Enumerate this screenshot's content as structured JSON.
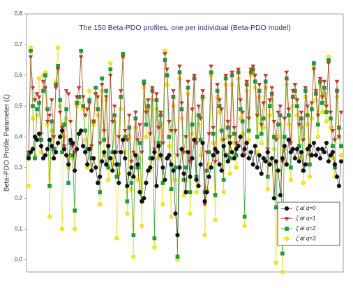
{
  "chart_data": {
    "type": "line",
    "title": "The 150 Beta-PDO profiles, one per individual (Beta-PDO model)",
    "ylabel": "Beta-PDO Profile Parameter (ζ)",
    "x": [
      1,
      2,
      3,
      4,
      5,
      6,
      7,
      8,
      9,
      10,
      11,
      12,
      13,
      14,
      15,
      16,
      17,
      18,
      19,
      20,
      21,
      22,
      23,
      24,
      25,
      26,
      27,
      28,
      29,
      30,
      31,
      32,
      33,
      34,
      35,
      36,
      37,
      38,
      39,
      40,
      41,
      42,
      43,
      44,
      45,
      46,
      47,
      48,
      49,
      50,
      51,
      52,
      53,
      54,
      55,
      56,
      57,
      58,
      59,
      60,
      61,
      62,
      63,
      64,
      65,
      66,
      67,
      68,
      69,
      70,
      71,
      72,
      73,
      74,
      75,
      76,
      77,
      78,
      79,
      80,
      81,
      82,
      83,
      84,
      85,
      86,
      87,
      88,
      89,
      90,
      91,
      92,
      93,
      94,
      95,
      96,
      97,
      98,
      99,
      100,
      101,
      102,
      103,
      104,
      105,
      106,
      107,
      108,
      109,
      110,
      111,
      112,
      113,
      114,
      115,
      116,
      117,
      118,
      119,
      120,
      121,
      122,
      123,
      124,
      125,
      126,
      127,
      128,
      129,
      130,
      131,
      132,
      133,
      134,
      135,
      136,
      137,
      138,
      139,
      140,
      141,
      142,
      143,
      144,
      145,
      146,
      147,
      148,
      149,
      150
    ],
    "xlim": [
      0,
      151
    ],
    "ylim": [
      -0.04,
      0.8
    ],
    "yticks": [
      {
        "value": 0,
        "label": "0.0"
      },
      0.1,
      0.2,
      0.3,
      0.4,
      0.5,
      0.6,
      0.7,
      0.8
    ],
    "legend": "lower right",
    "series": [
      {
        "name": "ζ at q=0",
        "color": "#111111",
        "marker": "circle",
        "values": [
          0.33,
          0.35,
          0.36,
          0.4,
          0.39,
          0.41,
          0.37,
          0.33,
          0.34,
          0.36,
          0.39,
          0.37,
          0.33,
          0.35,
          0.38,
          0.4,
          0.42,
          0.36,
          0.34,
          0.31,
          0.39,
          0.38,
          0.29,
          0.36,
          0.41,
          0.42,
          0.37,
          0.35,
          0.31,
          0.36,
          0.29,
          0.33,
          0.3,
          0.25,
          0.27,
          0.32,
          0.35,
          0.31,
          0.37,
          0.33,
          0.29,
          0.35,
          0.31,
          0.25,
          0.35,
          0.39,
          0.33,
          0.24,
          0.28,
          0.3,
          0.27,
          0.34,
          0.31,
          0.22,
          0.19,
          0.2,
          0.25,
          0.29,
          0.3,
          0.33,
          0.35,
          0.24,
          0.37,
          0.34,
          0.3,
          0.26,
          0.33,
          0.34,
          0.31,
          0.29,
          0.15,
          0.08,
          0.3,
          0.36,
          0.28,
          0.22,
          0.35,
          0.27,
          0.33,
          0.39,
          0.26,
          0.24,
          0.31,
          0.38,
          0.19,
          0.22,
          0.27,
          0.3,
          0.34,
          0.36,
          0.35,
          0.31,
          0.29,
          0.37,
          0.34,
          0.32,
          0.38,
          0.35,
          0.33,
          0.36,
          0.37,
          0.4,
          0.34,
          0.36,
          0.38,
          0.33,
          0.35,
          0.31,
          0.37,
          0.3,
          0.34,
          0.28,
          0.33,
          0.32,
          0.35,
          0.31,
          0.33,
          0.2,
          0.32,
          0.29,
          0.21,
          0.33,
          0.37,
          0.31,
          0.39,
          0.35,
          0.36,
          0.33,
          0.36,
          0.32,
          0.35,
          0.29,
          0.31,
          0.36,
          0.37,
          0.34,
          0.38,
          0.34,
          0.36,
          0.33,
          0.36,
          0.35,
          0.38,
          0.32,
          0.34,
          0.35,
          0.31,
          0.27,
          0.24,
          0.32
        ]
      },
      {
        "name": "ζ at q=1",
        "color": "#c0392b",
        "marker": "triangle-down",
        "values": [
          0.35,
          0.66,
          0.56,
          0.52,
          0.54,
          0.53,
          0.41,
          0.58,
          0.56,
          0.45,
          0.47,
          0.52,
          0.4,
          0.56,
          0.62,
          0.48,
          0.43,
          0.37,
          0.55,
          0.54,
          0.45,
          0.37,
          0.35,
          0.53,
          0.56,
          0.66,
          0.53,
          0.47,
          0.49,
          0.51,
          0.37,
          0.45,
          0.54,
          0.53,
          0.38,
          0.57,
          0.42,
          0.53,
          0.37,
          0.6,
          0.45,
          0.5,
          0.35,
          0.4,
          0.55,
          0.66,
          0.42,
          0.39,
          0.47,
          0.32,
          0.35,
          0.48,
          0.39,
          0.44,
          0.35,
          0.57,
          0.48,
          0.52,
          0.41,
          0.56,
          0.36,
          0.54,
          0.43,
          0.48,
          0.38,
          0.67,
          0.62,
          0.45,
          0.42,
          0.55,
          0.42,
          0.34,
          0.63,
          0.51,
          0.35,
          0.4,
          0.58,
          0.32,
          0.49,
          0.6,
          0.38,
          0.5,
          0.46,
          0.55,
          0.18,
          0.35,
          0.41,
          0.63,
          0.43,
          0.32,
          0.57,
          0.52,
          0.49,
          0.39,
          0.6,
          0.45,
          0.4,
          0.61,
          0.43,
          0.38,
          0.62,
          0.52,
          0.48,
          0.34,
          0.58,
          0.46,
          0.62,
          0.63,
          0.6,
          0.47,
          0.57,
          0.44,
          0.51,
          0.6,
          0.36,
          0.52,
          0.56,
          0.45,
          0.39,
          0.48,
          0.5,
          0.32,
          0.46,
          0.61,
          0.49,
          0.38,
          0.55,
          0.57,
          0.52,
          0.44,
          0.48,
          0.39,
          0.56,
          0.5,
          0.34,
          0.51,
          0.62,
          0.55,
          0.47,
          0.59,
          0.53,
          0.58,
          0.5,
          0.64,
          0.48,
          0.42,
          0.39,
          0.58,
          0.4,
          0.48
        ]
      },
      {
        "name": "ζ at q=2",
        "color": "#1f9a45",
        "marker": "square",
        "values": [
          0.34,
          0.68,
          0.5,
          0.33,
          0.49,
          0.51,
          0.39,
          0.55,
          0.6,
          0.49,
          0.24,
          0.45,
          0.36,
          0.57,
          0.63,
          0.52,
          0.35,
          0.44,
          0.49,
          0.25,
          0.38,
          0.34,
          0.16,
          0.51,
          0.53,
          0.68,
          0.5,
          0.42,
          0.36,
          0.52,
          0.33,
          0.45,
          0.56,
          0.49,
          0.22,
          0.59,
          0.39,
          0.55,
          0.3,
          0.62,
          0.35,
          0.47,
          0.27,
          0.31,
          0.53,
          0.67,
          0.4,
          0.19,
          0.43,
          0.25,
          0.08,
          0.46,
          0.3,
          0.38,
          0.19,
          0.58,
          0.44,
          0.5,
          0.33,
          0.55,
          0.07,
          0.52,
          0.38,
          0.47,
          0.25,
          0.65,
          0.6,
          0.4,
          0.23,
          0.53,
          0.3,
          0.01,
          0.61,
          0.49,
          0.26,
          0.3,
          0.56,
          0.22,
          0.44,
          0.59,
          0.27,
          0.47,
          0.39,
          0.53,
          0.22,
          0.29,
          0.35,
          0.61,
          0.41,
          0.21,
          0.55,
          0.5,
          0.42,
          0.26,
          0.59,
          0.43,
          0.33,
          0.6,
          0.41,
          0.34,
          0.61,
          0.49,
          0.45,
          0.14,
          0.57,
          0.42,
          0.61,
          0.62,
          0.58,
          0.4,
          0.55,
          0.41,
          0.46,
          0.58,
          0.27,
          0.5,
          0.54,
          0.4,
          0.17,
          0.44,
          0.47,
          0.02,
          0.4,
          0.59,
          0.47,
          0.3,
          0.53,
          0.55,
          0.5,
          0.37,
          0.46,
          0.29,
          0.55,
          0.47,
          0.31,
          0.49,
          0.64,
          0.54,
          0.44,
          0.58,
          0.51,
          0.56,
          0.48,
          0.65,
          0.46,
          0.37,
          0.3,
          0.55,
          0.43,
          0.37
        ]
      },
      {
        "name": "ζ at q=3",
        "color": "#f5e61e",
        "marker": "circle",
        "values": [
          0.24,
          0.69,
          0.46,
          0.34,
          0.47,
          0.59,
          0.35,
          0.6,
          0.61,
          0.44,
          0.14,
          0.42,
          0.33,
          0.58,
          0.69,
          0.5,
          0.1,
          0.4,
          0.46,
          0.3,
          0.34,
          0.33,
          0.1,
          0.5,
          0.51,
          0.68,
          0.49,
          0.39,
          0.3,
          0.55,
          0.31,
          0.44,
          0.54,
          0.47,
          0.18,
          0.55,
          0.34,
          0.52,
          0.26,
          0.64,
          0.31,
          0.45,
          0.07,
          0.28,
          0.49,
          0.66,
          0.35,
          0.15,
          0.4,
          0.23,
          0.01,
          0.43,
          0.26,
          0.33,
          0.11,
          0.56,
          0.4,
          0.49,
          0.29,
          0.52,
          0.04,
          0.49,
          0.33,
          0.44,
          0.18,
          0.68,
          0.57,
          0.37,
          0.14,
          0.5,
          0.26,
          0.0,
          0.59,
          0.46,
          0.21,
          0.26,
          0.54,
          0.15,
          0.41,
          0.59,
          0.22,
          0.44,
          0.34,
          0.52,
          0.08,
          0.23,
          0.31,
          0.6,
          0.38,
          0.13,
          0.53,
          0.48,
          0.39,
          0.22,
          0.57,
          0.4,
          0.28,
          0.57,
          0.38,
          0.3,
          0.59,
          0.46,
          0.41,
          0.11,
          0.55,
          0.39,
          0.6,
          0.61,
          0.56,
          0.35,
          0.53,
          0.38,
          0.43,
          0.56,
          0.23,
          0.47,
          0.52,
          0.36,
          -0.01,
          0.4,
          0.44,
          -0.04,
          0.36,
          0.57,
          0.44,
          0.26,
          0.5,
          0.53,
          0.47,
          0.33,
          0.43,
          0.25,
          0.53,
          0.44,
          0.27,
          0.46,
          0.63,
          0.52,
          0.4,
          0.57,
          0.48,
          0.54,
          0.45,
          0.66,
          0.43,
          0.33,
          0.27,
          0.53,
          0.4,
          0.34
        ]
      }
    ]
  }
}
